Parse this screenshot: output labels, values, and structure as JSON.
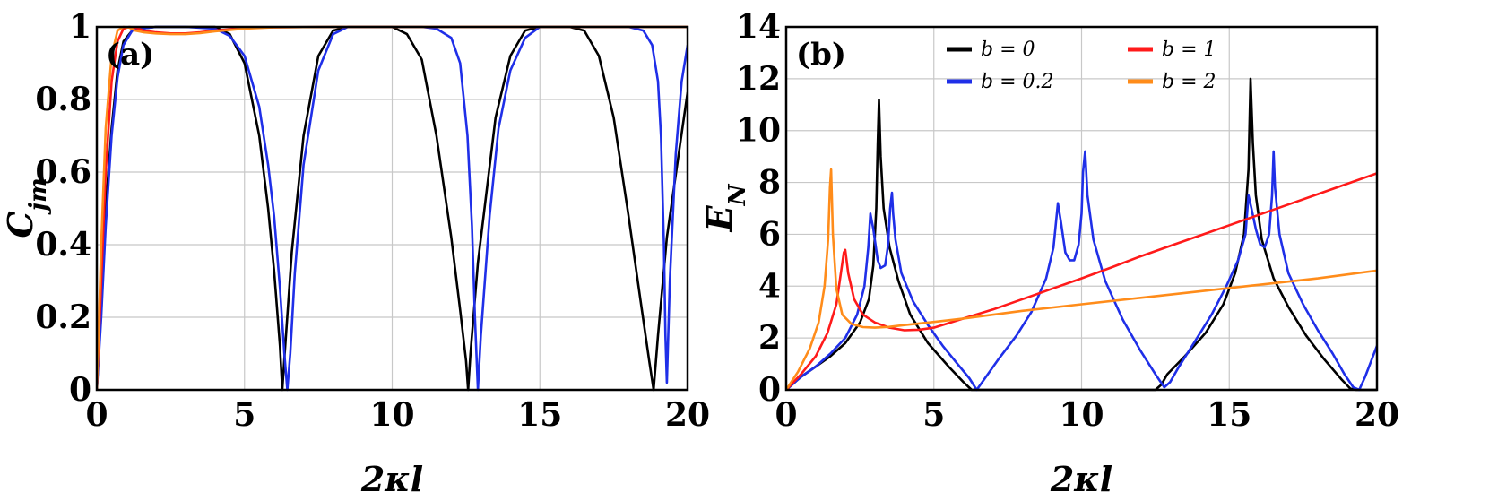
{
  "chart_data": [
    {
      "type": "line",
      "panel_label": "(a)",
      "xlabel": "2κl",
      "ylabel": "C_jm",
      "xlim": [
        0,
        20
      ],
      "ylim": [
        0,
        1
      ],
      "xticks": [
        "0",
        "5",
        "10",
        "15",
        "20"
      ],
      "yticks": [
        "0",
        "0.2",
        "0.4",
        "0.6",
        "0.8",
        "1"
      ],
      "grid": true,
      "series": [
        {
          "color": "#000000",
          "x": [
            0,
            0.15,
            0.3,
            0.5,
            0.7,
            0.9,
            1.2,
            1.5,
            2,
            3,
            4,
            4.5,
            5,
            5.5,
            5.8,
            6.0,
            6.2,
            6.28,
            6.36,
            6.6,
            7.0,
            7.5,
            8.0,
            8.5,
            9,
            10,
            10.5,
            11,
            11.5,
            12.0,
            12.3,
            12.5,
            12.57,
            12.65,
            12.9,
            13.5,
            14.0,
            14.5,
            15,
            16,
            16.5,
            17.0,
            17.5,
            18.0,
            18.4,
            18.7,
            18.85,
            19.0,
            19.3,
            19.7,
            20
          ],
          "y": [
            0,
            0.25,
            0.5,
            0.72,
            0.88,
            0.96,
            0.99,
            0.995,
            1,
            1,
            1,
            0.98,
            0.9,
            0.7,
            0.5,
            0.33,
            0.12,
            0,
            0.1,
            0.38,
            0.7,
            0.92,
            0.99,
            1,
            1,
            1,
            0.98,
            0.91,
            0.7,
            0.42,
            0.22,
            0.08,
            0,
            0.1,
            0.35,
            0.75,
            0.92,
            0.99,
            1,
            1,
            0.99,
            0.92,
            0.75,
            0.48,
            0.25,
            0.08,
            0,
            0.15,
            0.42,
            0.65,
            0.82
          ]
        },
        {
          "color": "#1f2fe8",
          "x": [
            0,
            0.15,
            0.3,
            0.5,
            0.7,
            0.9,
            1.2,
            1.5,
            2,
            3,
            4,
            4.5,
            5,
            5.5,
            5.8,
            6.0,
            6.2,
            6.35,
            6.45,
            6.55,
            6.7,
            7.0,
            7.5,
            8.0,
            8.5,
            9,
            10,
            11,
            11.5,
            12.0,
            12.3,
            12.55,
            12.7,
            12.8,
            12.9,
            13.0,
            13.3,
            13.6,
            14.0,
            14.5,
            15,
            16,
            17,
            18,
            18.5,
            18.8,
            19.0,
            19.1,
            19.2,
            19.25,
            19.3,
            19.4,
            19.6,
            19.8,
            20
          ],
          "y": [
            0,
            0.2,
            0.45,
            0.7,
            0.86,
            0.95,
            0.99,
            0.995,
            1,
            1,
            0.995,
            0.975,
            0.92,
            0.78,
            0.62,
            0.48,
            0.28,
            0.1,
            0,
            0.1,
            0.32,
            0.62,
            0.88,
            0.98,
            1,
            1,
            1,
            1,
            0.995,
            0.97,
            0.9,
            0.7,
            0.45,
            0.2,
            0,
            0.15,
            0.48,
            0.72,
            0.88,
            0.97,
            1,
            1,
            1,
            1,
            0.99,
            0.95,
            0.85,
            0.7,
            0.4,
            0.15,
            0.02,
            0.3,
            0.65,
            0.85,
            0.95
          ]
        },
        {
          "color": "#ff1a1a",
          "x": [
            0,
            0.15,
            0.3,
            0.5,
            0.7,
            0.9,
            1.1,
            1.3,
            1.6,
            2.0,
            2.5,
            3.0,
            3.5,
            4.0,
            5,
            6,
            8,
            10,
            12,
            15,
            18,
            20
          ],
          "y": [
            0,
            0.3,
            0.6,
            0.85,
            0.96,
            0.995,
            1,
            0.998,
            0.99,
            0.985,
            0.982,
            0.982,
            0.985,
            0.99,
            0.997,
            0.999,
            1,
            1,
            1,
            1,
            1,
            1
          ]
        },
        {
          "color": "#ff8c1a",
          "x": [
            0,
            0.15,
            0.3,
            0.5,
            0.7,
            0.9,
            1.1,
            1.3,
            1.6,
            2.0,
            2.5,
            3.0,
            3.5,
            4.0,
            5,
            6,
            8,
            10,
            12,
            15,
            18,
            20
          ],
          "y": [
            0,
            0.4,
            0.72,
            0.92,
            0.99,
            1,
            0.998,
            0.99,
            0.985,
            0.982,
            0.98,
            0.98,
            0.983,
            0.988,
            0.995,
            0.999,
            1,
            1,
            1,
            1,
            1,
            1
          ]
        }
      ]
    },
    {
      "type": "line",
      "panel_label": "(b)",
      "xlabel": "2κl",
      "ylabel": "E_N",
      "xlim": [
        0,
        20
      ],
      "ylim": [
        0,
        14
      ],
      "xticks": [
        "0",
        "5",
        "10",
        "15",
        "20"
      ],
      "yticks": [
        "0",
        "2",
        "4",
        "6",
        "8",
        "10",
        "12",
        "14"
      ],
      "grid": true,
      "legend_position": "top",
      "series": [
        {
          "name": "b = 0",
          "color": "#000000",
          "x": [
            0,
            0.5,
            1.0,
            1.5,
            2.0,
            2.5,
            2.8,
            2.95,
            3.05,
            3.1,
            3.14,
            3.2,
            3.3,
            3.5,
            3.8,
            4.2,
            4.8,
            5.5,
            6.0,
            6.28,
            6.4,
            7,
            8,
            9,
            10,
            11,
            12,
            12.5,
            12.7,
            12.9,
            13.5,
            14.2,
            14.8,
            15.2,
            15.5,
            15.65,
            15.72,
            15.8,
            15.9,
            16.1,
            16.5,
            17.0,
            17.6,
            18.2,
            18.8,
            19.1,
            19.3,
            20
          ],
          "y": [
            0,
            0.5,
            0.9,
            1.3,
            1.8,
            2.6,
            3.5,
            4.8,
            7.0,
            9.5,
            11.2,
            9.0,
            7.0,
            5.5,
            4.2,
            2.9,
            1.8,
            0.9,
            0.3,
            0,
            0,
            0,
            0,
            0,
            0,
            0,
            0,
            0,
            0.2,
            0.6,
            1.3,
            2.2,
            3.3,
            4.5,
            6.0,
            8.5,
            12.0,
            9.5,
            7.5,
            5.8,
            4.3,
            3.2,
            2.1,
            1.2,
            0.4,
            0.05,
            0,
            0
          ]
        },
        {
          "name": "b = 0.2",
          "color": "#1f2fe8",
          "x": [
            0,
            0.5,
            1.0,
            1.5,
            2.0,
            2.4,
            2.65,
            2.78,
            2.85,
            2.95,
            3.1,
            3.2,
            3.35,
            3.45,
            3.52,
            3.58,
            3.62,
            3.7,
            3.9,
            4.3,
            4.8,
            5.3,
            5.8,
            6.2,
            6.45,
            6.7,
            7.2,
            7.8,
            8.3,
            8.8,
            9.05,
            9.2,
            9.3,
            9.45,
            9.6,
            9.75,
            9.9,
            10.0,
            10.05,
            10.12,
            10.2,
            10.4,
            10.8,
            11.4,
            12.0,
            12.5,
            12.8,
            13.0,
            13.3,
            13.8,
            14.4,
            14.9,
            15.3,
            15.55,
            15.65,
            15.75,
            15.9,
            16.05,
            16.2,
            16.35,
            16.45,
            16.5,
            16.55,
            16.7,
            17.0,
            17.5,
            18.0,
            18.5,
            18.9,
            19.2,
            19.4,
            19.6,
            20
          ],
          "y": [
            0,
            0.5,
            0.9,
            1.4,
            2.0,
            2.9,
            4.0,
            5.5,
            6.8,
            6.2,
            5.0,
            4.7,
            4.8,
            5.6,
            7.0,
            7.6,
            6.8,
            5.8,
            4.5,
            3.4,
            2.5,
            1.7,
            1.0,
            0.45,
            0,
            0.4,
            1.2,
            2.1,
            3.0,
            4.3,
            5.5,
            7.2,
            6.5,
            5.3,
            5.0,
            5.0,
            5.6,
            6.8,
            8.4,
            9.2,
            7.5,
            5.8,
            4.2,
            2.7,
            1.5,
            0.6,
            0.1,
            0.3,
            0.9,
            1.8,
            2.9,
            4.0,
            5.0,
            6.0,
            7.5,
            7.0,
            6.2,
            5.6,
            5.5,
            6.0,
            7.5,
            9.2,
            7.8,
            6.0,
            4.5,
            3.3,
            2.3,
            1.4,
            0.6,
            0.1,
            0,
            0.5,
            1.7
          ]
        },
        {
          "name": "b = 1",
          "color": "#ff1a1a",
          "x": [
            0,
            0.5,
            1.0,
            1.4,
            1.7,
            1.85,
            1.95,
            2.0,
            2.1,
            2.3,
            2.6,
            3.0,
            3.5,
            4.0,
            4.5,
            5,
            6,
            7,
            8,
            9,
            10,
            11,
            12,
            13,
            14,
            15,
            16,
            17,
            18,
            19,
            20
          ],
          "y": [
            0,
            0.6,
            1.3,
            2.2,
            3.3,
            4.5,
            5.3,
            5.4,
            4.5,
            3.5,
            2.9,
            2.6,
            2.4,
            2.3,
            2.32,
            2.4,
            2.75,
            3.1,
            3.5,
            3.9,
            4.3,
            4.72,
            5.15,
            5.55,
            5.95,
            6.35,
            6.75,
            7.15,
            7.55,
            7.95,
            8.35
          ]
        },
        {
          "name": "b = 2",
          "color": "#ff8c1a",
          "x": [
            0,
            0.4,
            0.8,
            1.1,
            1.3,
            1.42,
            1.48,
            1.52,
            1.58,
            1.7,
            1.9,
            2.2,
            2.6,
            3.0,
            3.5,
            4,
            5,
            6,
            8,
            10,
            12,
            14,
            16,
            18,
            20
          ],
          "y": [
            0,
            0.7,
            1.6,
            2.6,
            4.0,
            5.8,
            7.8,
            8.5,
            6.0,
            3.9,
            2.9,
            2.55,
            2.42,
            2.4,
            2.43,
            2.5,
            2.62,
            2.75,
            3.05,
            3.3,
            3.55,
            3.8,
            4.05,
            4.3,
            4.6
          ]
        }
      ]
    }
  ]
}
